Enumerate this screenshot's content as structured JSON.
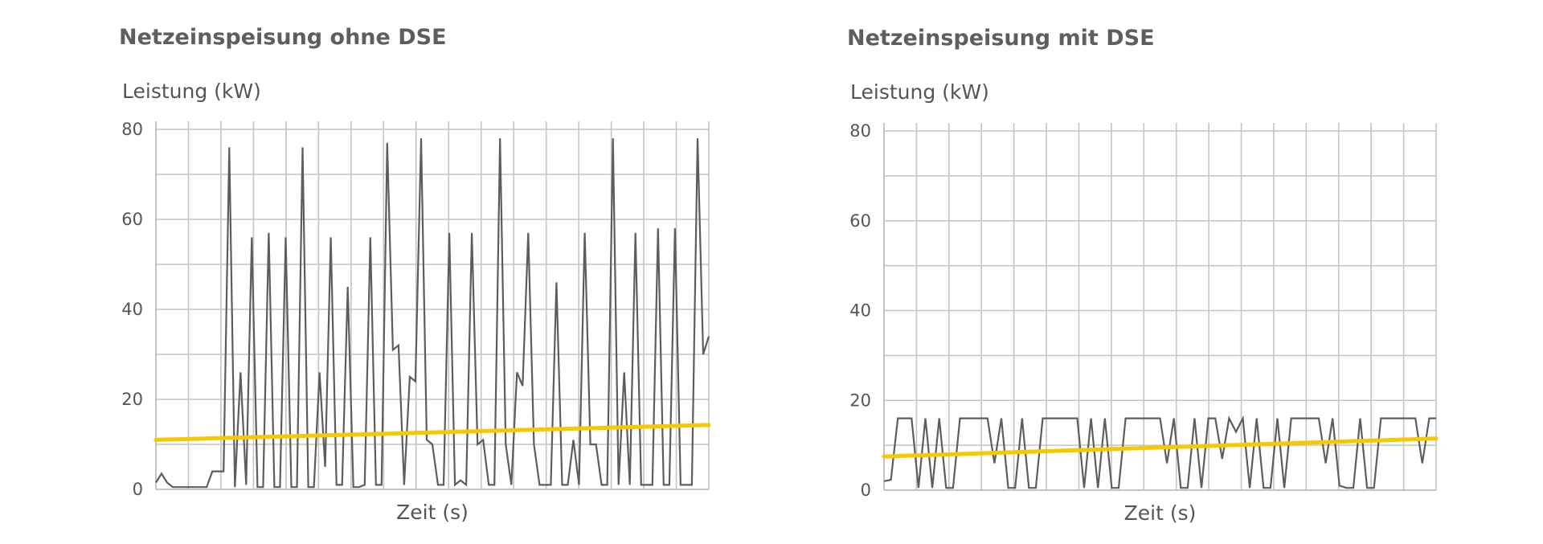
{
  "chart_data": [
    {
      "type": "line",
      "title": "Netzeinspeisung ohne DSE",
      "ylabel": "Leistung (kW)",
      "xlabel": "Zeit (s)",
      "ylim": [
        0,
        80
      ],
      "yticks": [
        0,
        20,
        40,
        60,
        80
      ],
      "grid": true,
      "colors": {
        "series": "#5d5d5d",
        "trend": "#f5c800"
      },
      "series": [
        {
          "values": [
            1.5,
            3.5,
            1.5,
            0.5,
            0.5,
            0.5,
            0.5,
            0.5,
            0.5,
            0.5,
            4,
            4,
            4,
            76,
            0.5,
            26,
            1,
            56,
            0.5,
            0.5,
            57,
            0.5,
            0.5,
            56,
            0.5,
            0.5,
            76,
            0.5,
            0.5,
            26,
            5,
            56,
            1,
            1,
            45,
            0.5,
            0.5,
            1,
            56,
            1,
            1,
            77,
            31,
            32,
            1,
            25,
            24,
            78,
            11,
            10,
            1,
            1,
            57,
            1,
            2,
            1,
            57,
            10,
            11,
            1,
            1,
            78,
            10,
            1,
            26,
            23,
            57,
            10,
            1,
            1,
            1,
            46,
            1,
            1,
            11,
            1,
            57,
            10,
            10,
            1,
            1,
            78,
            1,
            26,
            1,
            57,
            1,
            1,
            1,
            58,
            1,
            1,
            58,
            1,
            1,
            1,
            78,
            30,
            34
          ]
        }
      ],
      "trend": [
        11,
        14.3
      ]
    },
    {
      "type": "line",
      "title": "Netzeinspeisung mit DSE",
      "ylabel": "Leistung (kW)",
      "xlabel": "Zeit (s)",
      "ylim": [
        0,
        80
      ],
      "yticks": [
        0,
        20,
        40,
        60,
        80
      ],
      "grid": true,
      "colors": {
        "series": "#5d5d5d",
        "trend": "#f5c800"
      },
      "series": [
        {
          "values": [
            2,
            2.3,
            16,
            16,
            16,
            0.5,
            16,
            0.5,
            16,
            0.5,
            0.5,
            16,
            16,
            16,
            16,
            16,
            6,
            16,
            0.5,
            0.5,
            16,
            0.5,
            0.5,
            16,
            16,
            16,
            16,
            16,
            16,
            0.5,
            16,
            0.5,
            16,
            0.5,
            0.5,
            16,
            16,
            16,
            16,
            16,
            16,
            6,
            16,
            0.5,
            0.5,
            16,
            0.5,
            16,
            16,
            7,
            16,
            13,
            16,
            0.5,
            16,
            0.5,
            0.5,
            16,
            0.5,
            16,
            16,
            16,
            16,
            16,
            6,
            16,
            1,
            0.5,
            0.5,
            16,
            0.5,
            0.5,
            16,
            16,
            16,
            16,
            16,
            16,
            6,
            16,
            16
          ]
        }
      ],
      "trend": [
        7.5,
        11.5
      ]
    }
  ]
}
